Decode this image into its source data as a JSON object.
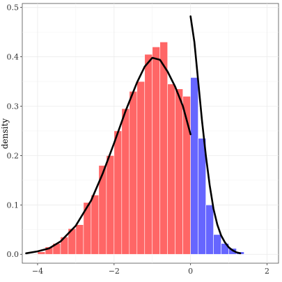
{
  "chart_data": {
    "type": "bar",
    "title": "",
    "xlabel": "",
    "ylabel": "density",
    "xlim": [
      -4.4,
      2.3
    ],
    "ylim": [
      -0.018,
      0.508
    ],
    "x_ticks": [
      -4,
      -2,
      0,
      2
    ],
    "x_tick_labels": [
      "−4",
      "−2",
      "0",
      "2"
    ],
    "y_ticks": [
      0.0,
      0.1,
      0.2,
      0.3,
      0.4,
      0.5
    ],
    "y_tick_labels": [
      "0.0",
      "0.1",
      "0.2",
      "0.3",
      "0.4",
      "0.5"
    ],
    "grid": true,
    "bin_width": 0.2,
    "series": [
      {
        "color": "#ff6666",
        "bins": [
          {
            "x": -3.9,
            "y": 0.005
          },
          {
            "x": -3.7,
            "y": 0.015
          },
          {
            "x": -3.5,
            "y": 0.022
          },
          {
            "x": -3.3,
            "y": 0.035
          },
          {
            "x": -3.1,
            "y": 0.052
          },
          {
            "x": -2.9,
            "y": 0.06
          },
          {
            "x": -2.7,
            "y": 0.105
          },
          {
            "x": -2.5,
            "y": 0.12
          },
          {
            "x": -2.3,
            "y": 0.18
          },
          {
            "x": -2.1,
            "y": 0.2
          },
          {
            "x": -1.9,
            "y": 0.25
          },
          {
            "x": -1.7,
            "y": 0.295
          },
          {
            "x": -1.5,
            "y": 0.33
          },
          {
            "x": -1.3,
            "y": 0.35
          },
          {
            "x": -1.1,
            "y": 0.405
          },
          {
            "x": -0.9,
            "y": 0.42
          },
          {
            "x": -0.7,
            "y": 0.43
          },
          {
            "x": -0.5,
            "y": 0.345
          },
          {
            "x": -0.3,
            "y": 0.335
          },
          {
            "x": -0.1,
            "y": 0.32
          }
        ]
      },
      {
        "color": "#6666ff",
        "bins": [
          {
            "x": 0.1,
            "y": 0.358
          },
          {
            "x": 0.3,
            "y": 0.235
          },
          {
            "x": 0.5,
            "y": 0.1
          },
          {
            "x": 0.7,
            "y": 0.04
          },
          {
            "x": 0.9,
            "y": 0.022
          },
          {
            "x": 1.1,
            "y": 0.012
          },
          {
            "x": 1.3,
            "y": 0.005
          }
        ]
      }
    ],
    "curves": [
      {
        "color": "#000000",
        "points": [
          [
            -4.3,
            0.002
          ],
          [
            -4.0,
            0.006
          ],
          [
            -3.7,
            0.012
          ],
          [
            -3.4,
            0.026
          ],
          [
            -3.0,
            0.058
          ],
          [
            -2.6,
            0.109
          ],
          [
            -2.3,
            0.163
          ],
          [
            -2.0,
            0.225
          ],
          [
            -1.7,
            0.29
          ],
          [
            -1.4,
            0.348
          ],
          [
            -1.2,
            0.38
          ],
          [
            -1.0,
            0.398
          ],
          [
            -0.8,
            0.394
          ],
          [
            -0.6,
            0.37
          ],
          [
            -0.4,
            0.339
          ],
          [
            -0.2,
            0.3
          ],
          [
            0.0,
            0.243
          ]
        ]
      },
      {
        "color": "#000000",
        "points": [
          [
            0.0,
            0.482
          ],
          [
            0.1,
            0.43
          ],
          [
            0.2,
            0.35
          ],
          [
            0.3,
            0.27
          ],
          [
            0.4,
            0.2
          ],
          [
            0.5,
            0.14
          ],
          [
            0.6,
            0.092
          ],
          [
            0.7,
            0.06
          ],
          [
            0.8,
            0.038
          ],
          [
            0.9,
            0.024
          ],
          [
            1.0,
            0.014
          ],
          [
            1.1,
            0.008
          ],
          [
            1.2,
            0.004
          ],
          [
            1.3,
            0.002
          ]
        ]
      }
    ]
  }
}
